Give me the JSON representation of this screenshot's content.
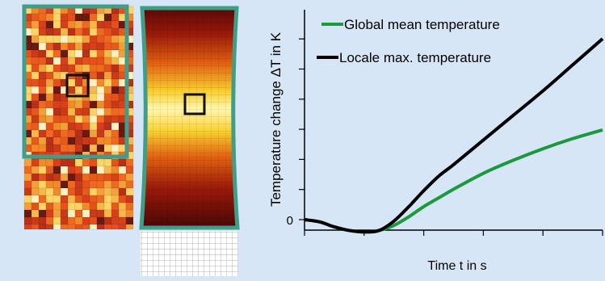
{
  "chart_data": {
    "type": "line",
    "title": "",
    "xlabel": "Time t in s",
    "ylabel": "Temperature change ΔT in K",
    "ytick_label_zero": "0",
    "x_ticks_count": 6,
    "y_ticks_count": 7,
    "xlim": [
      0,
      100
    ],
    "ylim": [
      -10,
      140
    ],
    "legend": "top-left",
    "series": [
      {
        "name": "Global mean temperature",
        "color": "#1a9a3c",
        "x": [
          0,
          5,
          10,
          15,
          20,
          25,
          30,
          35,
          40,
          45,
          50,
          60,
          70,
          80,
          90,
          100
        ],
        "y": [
          0,
          -1.5,
          -5,
          -7.5,
          -8.5,
          -7.5,
          -4,
          2,
          9,
          15,
          21,
          32,
          41,
          49,
          56,
          62
        ]
      },
      {
        "name": "Locale max. temperature",
        "color": "#000000",
        "x": [
          0,
          5,
          10,
          15,
          20,
          25,
          30,
          35,
          40,
          45,
          50,
          60,
          70,
          80,
          90,
          100
        ],
        "y": [
          0,
          -1.5,
          -5,
          -7.5,
          -8.5,
          -7.5,
          -1,
          9,
          20,
          30,
          38,
          55,
          72,
          89,
          107,
          125
        ]
      }
    ]
  },
  "colors": {
    "background": "#d6e6f6",
    "frame": "#3e9e88",
    "heat_dark": "#5a0808",
    "heat_mid": "#e06010",
    "heat_bright": "#fff7b0"
  }
}
